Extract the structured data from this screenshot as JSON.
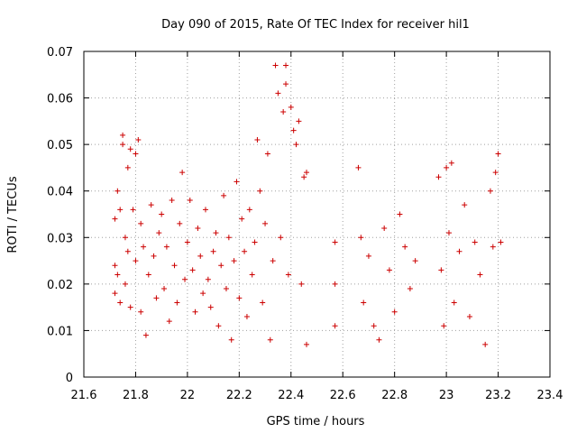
{
  "chart_data": {
    "type": "scatter",
    "title": "Day 090 of 2015, Rate Of TEC Index for receiver hil1",
    "xlabel": "GPS time / hours",
    "ylabel": "ROTI / TECUs",
    "xlim": [
      21.6,
      23.4
    ],
    "ylim": [
      0,
      0.07
    ],
    "x_ticks": [
      "21.6",
      "21.8",
      "22",
      "22.2",
      "22.4",
      "22.6",
      "22.8",
      "23",
      "23.2",
      "23.4"
    ],
    "y_ticks": [
      "0",
      "0.01",
      "0.02",
      "0.03",
      "0.04",
      "0.05",
      "0.06",
      "0.07"
    ],
    "grid": true,
    "marker": "+",
    "series": [
      {
        "name": "hil1",
        "color": "#cc0000",
        "points": [
          [
            21.72,
            0.034
          ],
          [
            21.72,
            0.024
          ],
          [
            21.72,
            0.018
          ],
          [
            21.73,
            0.04
          ],
          [
            21.73,
            0.022
          ],
          [
            21.74,
            0.036
          ],
          [
            21.74,
            0.016
          ],
          [
            21.75,
            0.05
          ],
          [
            21.75,
            0.052
          ],
          [
            21.76,
            0.03
          ],
          [
            21.76,
            0.02
          ],
          [
            21.77,
            0.045
          ],
          [
            21.77,
            0.027
          ],
          [
            21.78,
            0.049
          ],
          [
            21.78,
            0.015
          ],
          [
            21.79,
            0.036
          ],
          [
            21.8,
            0.048
          ],
          [
            21.8,
            0.025
          ],
          [
            21.81,
            0.051
          ],
          [
            21.82,
            0.033
          ],
          [
            21.82,
            0.014
          ],
          [
            21.83,
            0.028
          ],
          [
            21.84,
            0.009
          ],
          [
            21.85,
            0.022
          ],
          [
            21.86,
            0.037
          ],
          [
            21.87,
            0.026
          ],
          [
            21.88,
            0.017
          ],
          [
            21.89,
            0.031
          ],
          [
            21.9,
            0.035
          ],
          [
            21.91,
            0.019
          ],
          [
            21.92,
            0.028
          ],
          [
            21.93,
            0.012
          ],
          [
            21.94,
            0.038
          ],
          [
            21.95,
            0.024
          ],
          [
            21.96,
            0.016
          ],
          [
            21.97,
            0.033
          ],
          [
            21.98,
            0.044
          ],
          [
            21.99,
            0.021
          ],
          [
            22.0,
            0.029
          ],
          [
            22.01,
            0.038
          ],
          [
            22.02,
            0.023
          ],
          [
            22.03,
            0.014
          ],
          [
            22.04,
            0.032
          ],
          [
            22.05,
            0.026
          ],
          [
            22.06,
            0.018
          ],
          [
            22.07,
            0.036
          ],
          [
            22.08,
            0.021
          ],
          [
            22.09,
            0.015
          ],
          [
            22.1,
            0.027
          ],
          [
            22.11,
            0.031
          ],
          [
            22.12,
            0.011
          ],
          [
            22.13,
            0.024
          ],
          [
            22.14,
            0.039
          ],
          [
            22.15,
            0.019
          ],
          [
            22.16,
            0.03
          ],
          [
            22.17,
            0.008
          ],
          [
            22.18,
            0.025
          ],
          [
            22.19,
            0.042
          ],
          [
            22.2,
            0.017
          ],
          [
            22.21,
            0.034
          ],
          [
            22.22,
            0.027
          ],
          [
            22.23,
            0.013
          ],
          [
            22.24,
            0.036
          ],
          [
            22.25,
            0.022
          ],
          [
            22.26,
            0.029
          ],
          [
            22.27,
            0.051
          ],
          [
            22.28,
            0.04
          ],
          [
            22.29,
            0.016
          ],
          [
            22.3,
            0.033
          ],
          [
            22.31,
            0.048
          ],
          [
            22.32,
            0.008
          ],
          [
            22.33,
            0.025
          ],
          [
            22.34,
            0.067
          ],
          [
            22.35,
            0.061
          ],
          [
            22.36,
            0.03
          ],
          [
            22.37,
            0.057
          ],
          [
            22.38,
            0.067
          ],
          [
            22.38,
            0.063
          ],
          [
            22.39,
            0.022
          ],
          [
            22.4,
            0.058
          ],
          [
            22.41,
            0.053
          ],
          [
            22.42,
            0.05
          ],
          [
            22.43,
            0.055
          ],
          [
            22.44,
            0.02
          ],
          [
            22.45,
            0.043
          ],
          [
            22.46,
            0.044
          ],
          [
            22.46,
            0.007
          ],
          [
            22.57,
            0.029
          ],
          [
            22.57,
            0.011
          ],
          [
            22.57,
            0.02
          ],
          [
            22.66,
            0.045
          ],
          [
            22.67,
            0.03
          ],
          [
            22.68,
            0.016
          ],
          [
            22.7,
            0.026
          ],
          [
            22.72,
            0.011
          ],
          [
            22.74,
            0.008
          ],
          [
            22.76,
            0.032
          ],
          [
            22.78,
            0.023
          ],
          [
            22.8,
            0.014
          ],
          [
            22.82,
            0.035
          ],
          [
            22.84,
            0.028
          ],
          [
            22.86,
            0.019
          ],
          [
            22.88,
            0.025
          ],
          [
            22.97,
            0.043
          ],
          [
            22.98,
            0.023
          ],
          [
            22.99,
            0.011
          ],
          [
            23.0,
            0.045
          ],
          [
            23.01,
            0.031
          ],
          [
            23.02,
            0.046
          ],
          [
            23.03,
            0.016
          ],
          [
            23.05,
            0.027
          ],
          [
            23.07,
            0.037
          ],
          [
            23.09,
            0.013
          ],
          [
            23.11,
            0.029
          ],
          [
            23.13,
            0.022
          ],
          [
            23.15,
            0.007
          ],
          [
            23.17,
            0.04
          ],
          [
            23.18,
            0.028
          ],
          [
            23.19,
            0.044
          ],
          [
            23.2,
            0.048
          ],
          [
            23.21,
            0.029
          ]
        ]
      }
    ]
  }
}
